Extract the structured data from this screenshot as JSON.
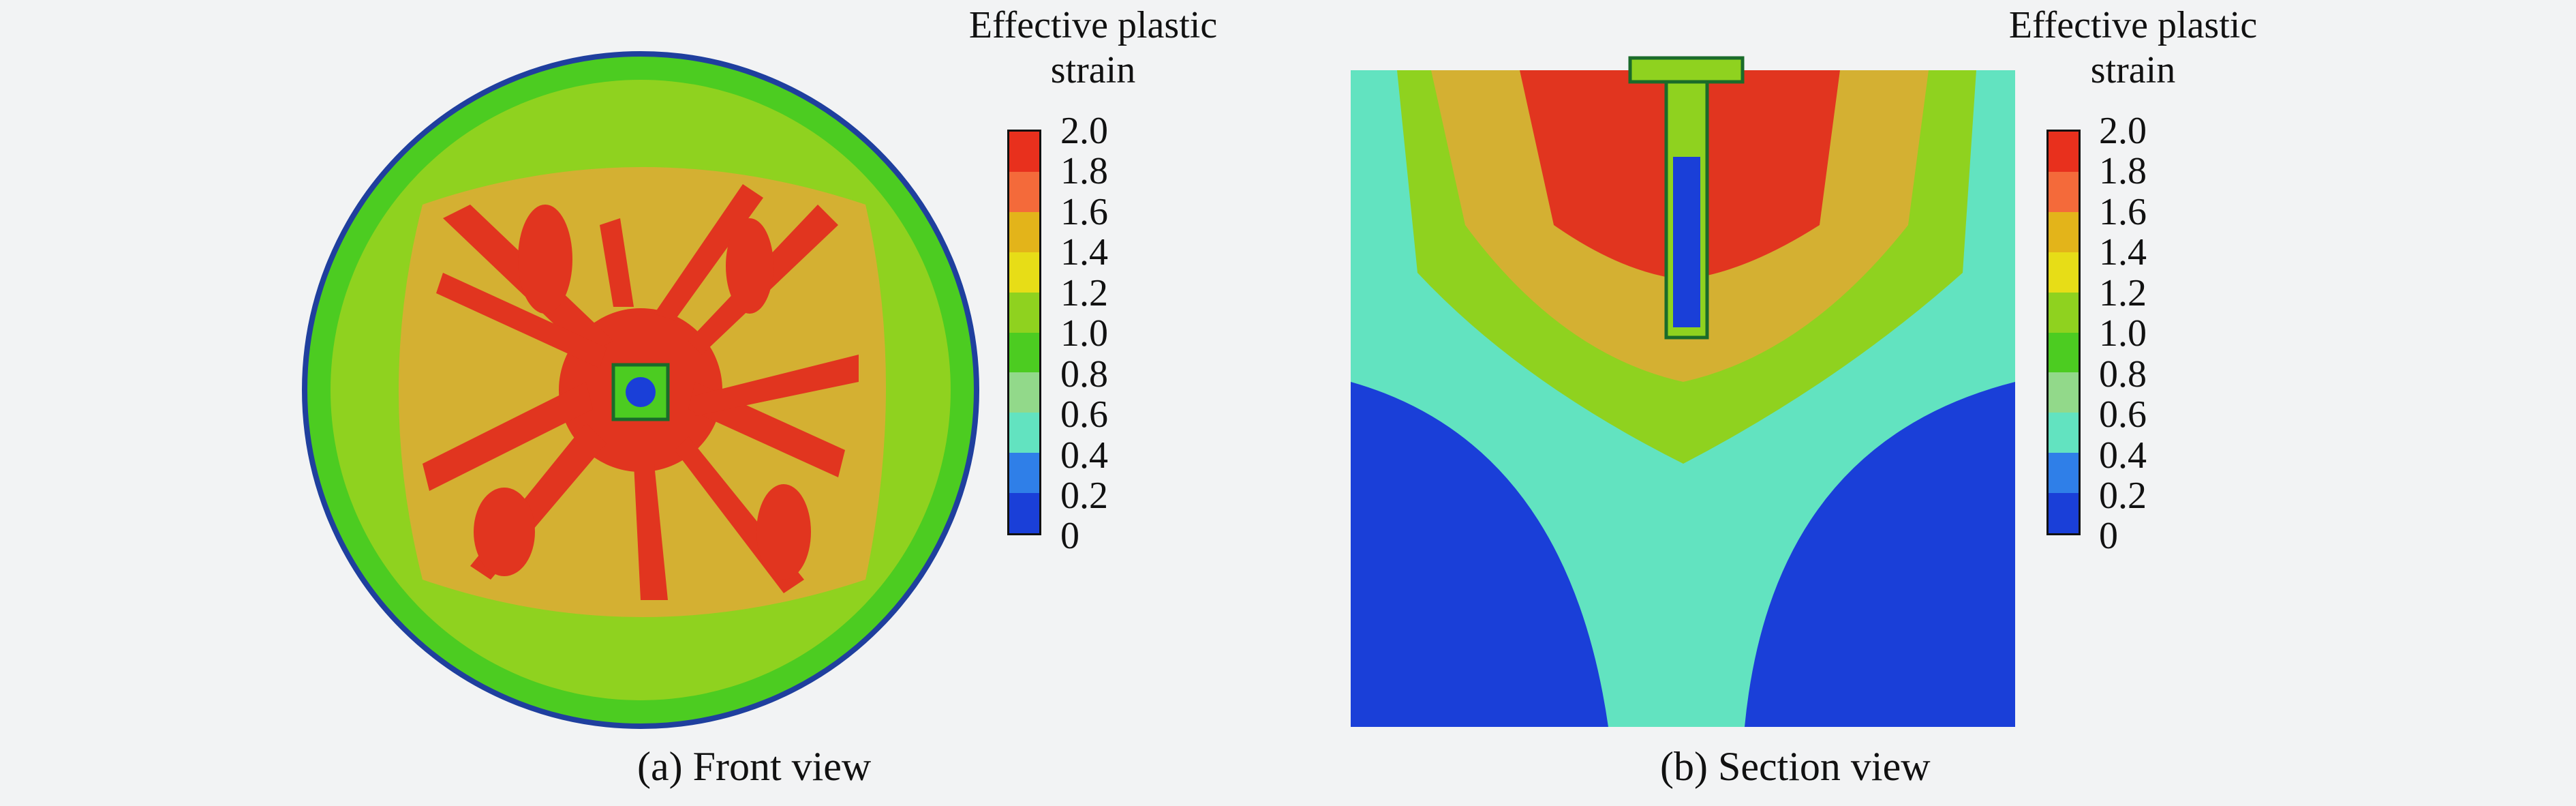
{
  "legend": {
    "title_line1": "Effective plastic",
    "title_line2": "strain",
    "ticks": [
      "2.0",
      "1.8",
      "1.6",
      "1.4",
      "1.2",
      "1.0",
      "0.8",
      "0.6",
      "0.4",
      "0.2",
      "0"
    ],
    "colors": [
      "#e8301d",
      "#f46a3a",
      "#e3b41a",
      "#e7dd17",
      "#8fd21f",
      "#4ccc21",
      "#92d98a",
      "#62e3c0",
      "#2f7fe8",
      "#1a3fd8"
    ]
  },
  "panels": {
    "a": {
      "label": "(a) Front view"
    },
    "b": {
      "label": "(b) Section view"
    }
  }
}
